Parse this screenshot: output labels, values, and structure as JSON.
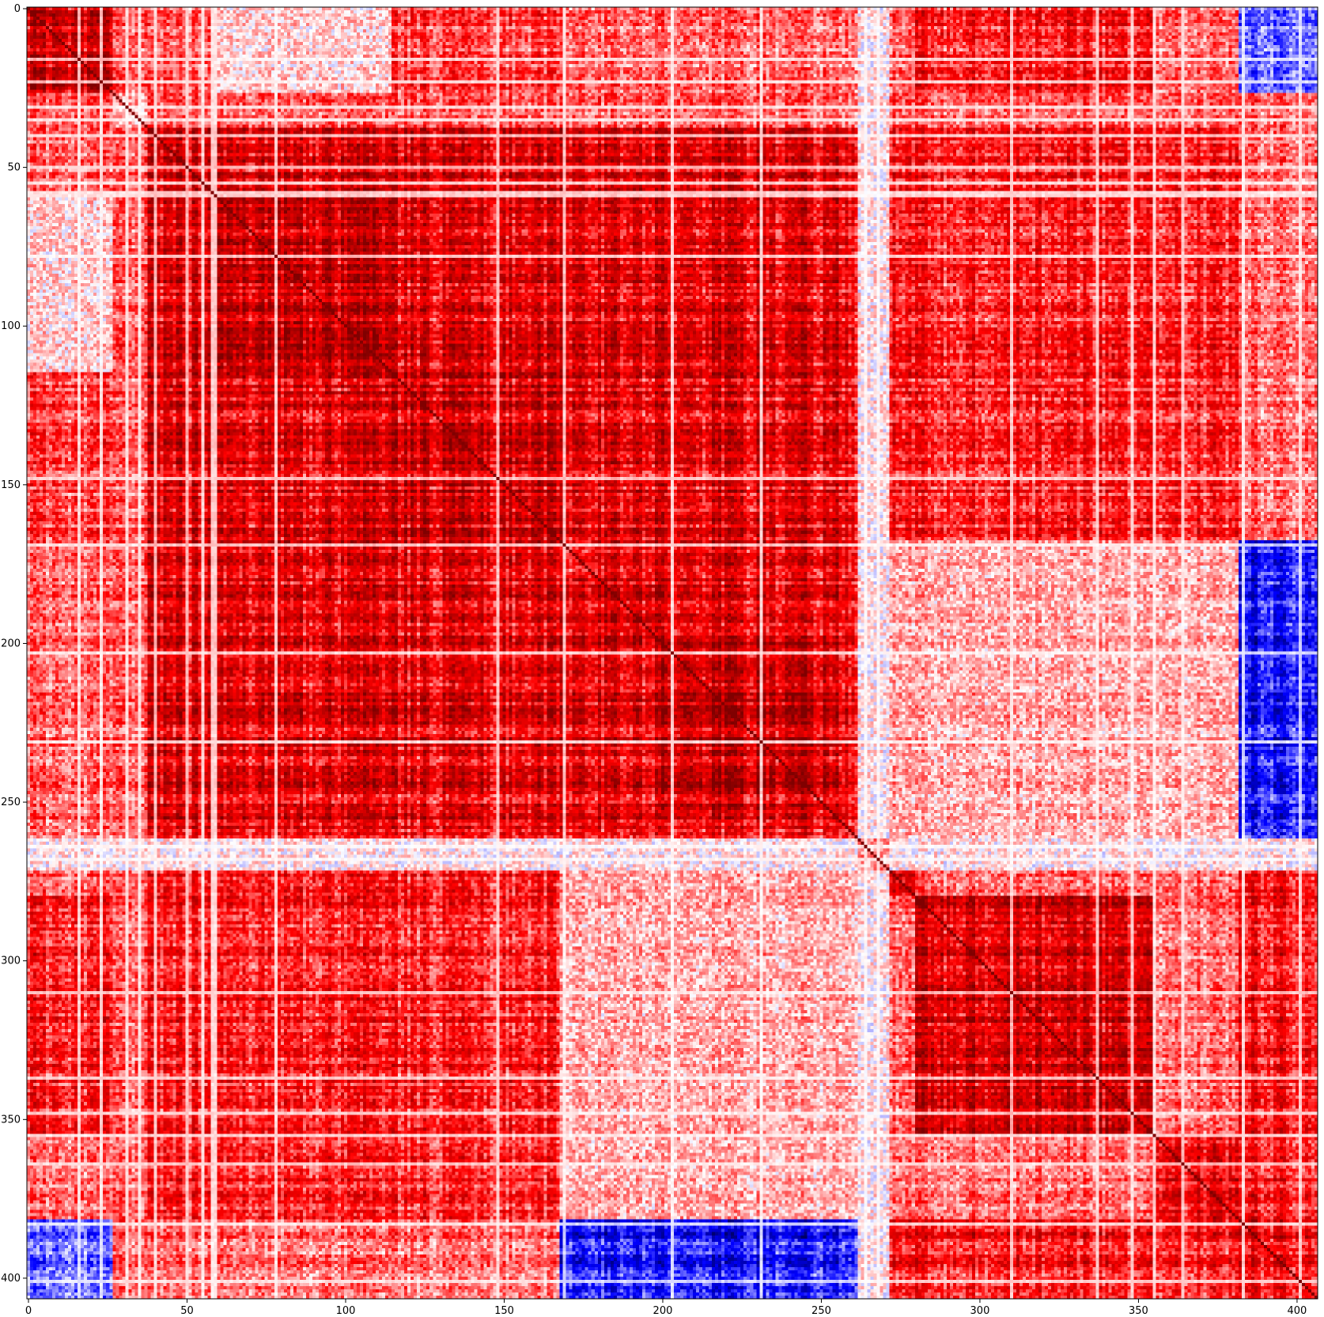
{
  "chart_data": {
    "type": "heatmap",
    "title": "",
    "xlabel": "",
    "ylabel": "",
    "n": 407,
    "xlim": [
      -0.5,
      406.5
    ],
    "ylim": [
      406.5,
      -0.5
    ],
    "x_ticks": [
      0,
      50,
      100,
      150,
      200,
      250,
      300,
      350,
      400
    ],
    "y_ticks": [
      0,
      50,
      100,
      150,
      200,
      250,
      300,
      350,
      400
    ],
    "x_tick_labels": [
      "0",
      "50",
      "100",
      "150",
      "200",
      "250",
      "300",
      "350",
      "400"
    ],
    "y_tick_labels": [
      "0",
      "50",
      "100",
      "150",
      "200",
      "250",
      "300",
      "350",
      "400"
    ],
    "value_range": [
      -1,
      1
    ],
    "colormap": "seismic",
    "colors": {
      "negative": "#0000ff",
      "zero": "#ffffff",
      "positive": "#ff0000",
      "max": "#800000"
    },
    "diagonal_value": 1.0,
    "cluster_boundaries": [
      0,
      27,
      38,
      60,
      115,
      168,
      178,
      200,
      253,
      262,
      272,
      280,
      355,
      382,
      407
    ],
    "cluster_blocks": [
      {
        "start": 0,
        "end": 27,
        "within_corr": 0.78
      },
      {
        "start": 27,
        "end": 38,
        "within_corr": 0.15
      },
      {
        "start": 38,
        "end": 60,
        "within_corr": 0.72
      },
      {
        "start": 60,
        "end": 115,
        "within_corr": 0.85
      },
      {
        "start": 115,
        "end": 168,
        "within_corr": 0.82
      },
      {
        "start": 168,
        "end": 178,
        "within_corr": 0.55
      },
      {
        "start": 178,
        "end": 200,
        "within_corr": 0.8
      },
      {
        "start": 200,
        "end": 253,
        "within_corr": 0.86
      },
      {
        "start": 253,
        "end": 262,
        "within_corr": 0.7
      },
      {
        "start": 262,
        "end": 272,
        "within_corr": 0.3
      },
      {
        "start": 272,
        "end": 280,
        "within_corr": 0.7
      },
      {
        "start": 280,
        "end": 355,
        "within_corr": 0.8
      },
      {
        "start": 355,
        "end": 382,
        "within_corr": 0.72
      },
      {
        "start": 382,
        "end": 407,
        "within_corr": 0.7
      }
    ],
    "between_block_corr": [
      {
        "rows": [
          0,
          27
        ],
        "cols": [
          60,
          115
        ],
        "mean_corr": 0.1
      },
      {
        "rows": [
          0,
          27
        ],
        "cols": [
          115,
          168
        ],
        "mean_corr": 0.45
      },
      {
        "rows": [
          0,
          27
        ],
        "cols": [
          280,
          355
        ],
        "mean_corr": 0.55
      },
      {
        "rows": [
          0,
          27
        ],
        "cols": [
          382,
          407
        ],
        "mean_corr": -0.35
      },
      {
        "rows": [
          38,
          262
        ],
        "cols": [
          38,
          262
        ],
        "mean_corr": 0.72
      },
      {
        "rows": [
          38,
          168
        ],
        "cols": [
          272,
          382
        ],
        "mean_corr": 0.55
      },
      {
        "rows": [
          168,
          262
        ],
        "cols": [
          272,
          382
        ],
        "mean_corr": 0.2
      },
      {
        "rows": [
          168,
          262
        ],
        "cols": [
          382,
          407
        ],
        "mean_corr": -0.6
      },
      {
        "rows": [
          272,
          382
        ],
        "cols": [
          38,
          168
        ],
        "mean_corr": 0.6
      },
      {
        "rows": [
          272,
          382
        ],
        "cols": [
          168,
          262
        ],
        "mean_corr": 0.25
      },
      {
        "rows": [
          382,
          407
        ],
        "cols": [
          168,
          262
        ],
        "mean_corr": -0.55
      },
      {
        "rows": [
          382,
          407
        ],
        "cols": [
          272,
          382
        ],
        "mean_corr": 0.6
      },
      {
        "rows": [
          262,
          272
        ],
        "cols": [
          0,
          407
        ],
        "mean_corr": 0.05
      }
    ]
  }
}
